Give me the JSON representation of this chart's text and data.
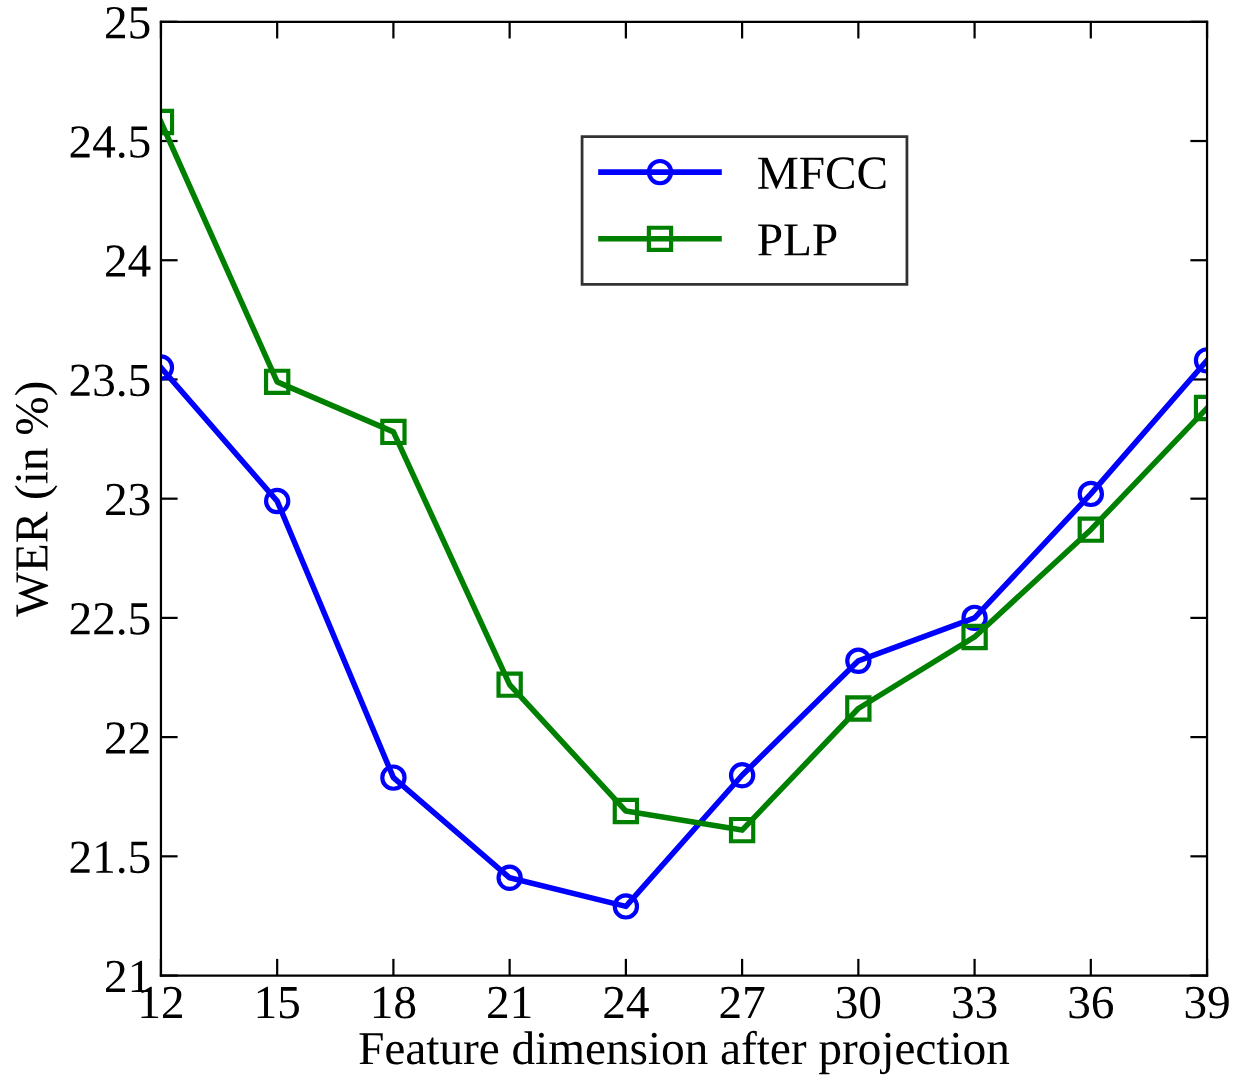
{
  "chart_data": {
    "type": "line",
    "xlabel": "Feature dimension after projection",
    "ylabel": "WER (in %)",
    "x": [
      12,
      15,
      18,
      21,
      24,
      27,
      30,
      33,
      36,
      39
    ],
    "series": [
      {
        "name": "MFCC",
        "color": "#0000ff",
        "marker": "circle",
        "values": [
          23.55,
          22.99,
          21.83,
          21.41,
          21.29,
          21.84,
          22.32,
          22.5,
          23.02,
          23.58
        ]
      },
      {
        "name": "PLP",
        "color": "#008000",
        "marker": "square",
        "values": [
          24.58,
          23.49,
          23.28,
          22.22,
          21.69,
          21.61,
          22.12,
          22.42,
          22.87,
          23.38
        ]
      }
    ],
    "xlim": [
      12,
      39
    ],
    "xticks": [
      12,
      15,
      18,
      21,
      24,
      27,
      30,
      33,
      36,
      39
    ],
    "ylim": [
      21,
      25
    ],
    "yticks": [
      21,
      21.5,
      22,
      22.5,
      23,
      23.5,
      24,
      24.5,
      25
    ],
    "grid": false,
    "legend": "top center",
    "line_style": "solid"
  }
}
